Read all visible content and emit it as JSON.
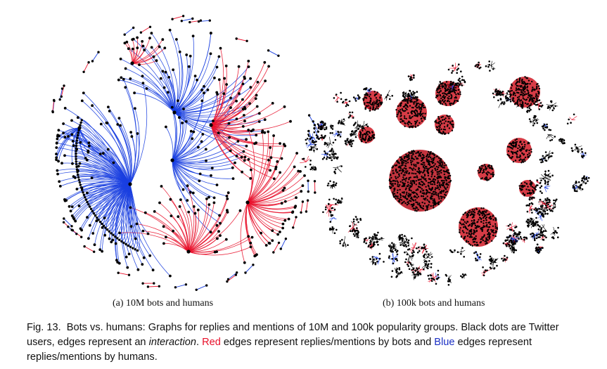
{
  "colors": {
    "bot_edge": "#e8102a",
    "human_edge": "#1a3fe0",
    "node": "#000000",
    "caption_red": "#e8102a",
    "caption_blue": "#1a2fc4"
  },
  "panels": [
    {
      "label": "(a)  10M bots and humans"
    },
    {
      "label": "(b)  100k bots and humans"
    }
  ],
  "caption": {
    "fig_label": "Fig. 13.",
    "part1": "Bots vs. humans: Graphs for replies and mentions of 10M and 100k popularity groups. Black dots are Twitter users, edges represent an ",
    "interaction": "interaction",
    "part2": ". ",
    "red_word": "Red",
    "part3": " edges represent replies/mentions by bots and ",
    "blue_word": "Blue",
    "part4": " edges represent replies/mentions by humans."
  }
}
